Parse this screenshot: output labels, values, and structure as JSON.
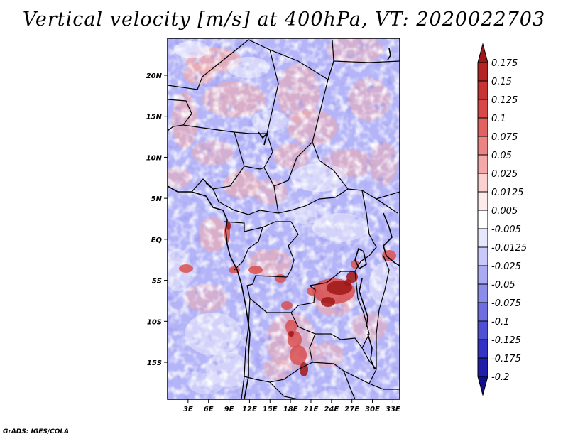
{
  "title": "Vertical velocity [m/s] at 400hPa, VT: 2020022703",
  "credit": "GrADS: IGES/COLA",
  "map": {
    "lat_range": [
      -19.5,
      24.5
    ],
    "lon_range": [
      0.0,
      34.0
    ],
    "lat_labels": [
      "20N",
      "15N",
      "10N",
      "5N",
      "EQ",
      "5S",
      "10S",
      "15S"
    ],
    "lat_values": [
      20,
      15,
      10,
      5,
      0,
      -5,
      -10,
      -15
    ],
    "lon_labels": [
      "3E",
      "6E",
      "9E",
      "12E",
      "15E",
      "18E",
      "21E",
      "24E",
      "27E",
      "30E",
      "33E"
    ],
    "lon_values": [
      3,
      6,
      9,
      12,
      15,
      18,
      21,
      24,
      27,
      30,
      33
    ]
  },
  "colorbar": {
    "labels": [
      "0.175",
      "0.15",
      "0.125",
      "0.1",
      "0.075",
      "0.05",
      "0.025",
      "0.0125",
      "0.005",
      "-0.005",
      "-0.0125",
      "-0.025",
      "-0.05",
      "-0.075",
      "-0.1",
      "-0.125",
      "-0.175",
      "-0.2"
    ],
    "colors": [
      "#a01616",
      "#b42424",
      "#c83434",
      "#d84848",
      "#e26262",
      "#ec8484",
      "#f4a8a8",
      "#fad0d0",
      "#fdeaea",
      "#ffffff",
      "#e6e6fc",
      "#c8c8fa",
      "#aaaaf2",
      "#8c8cea",
      "#6e6ee0",
      "#5050d4",
      "#3232c4",
      "#1e1ea8",
      "#0e0e8e"
    ],
    "max_color": "#a01616",
    "min_color": "#0e0e8e"
  },
  "palette": {
    "background": "#ffffff",
    "base_blue": "#b4b4f8",
    "pale": "#e6e6fc",
    "pink": "#f2aaaa",
    "red": "#d85050",
    "dark_red": "#a01616"
  }
}
